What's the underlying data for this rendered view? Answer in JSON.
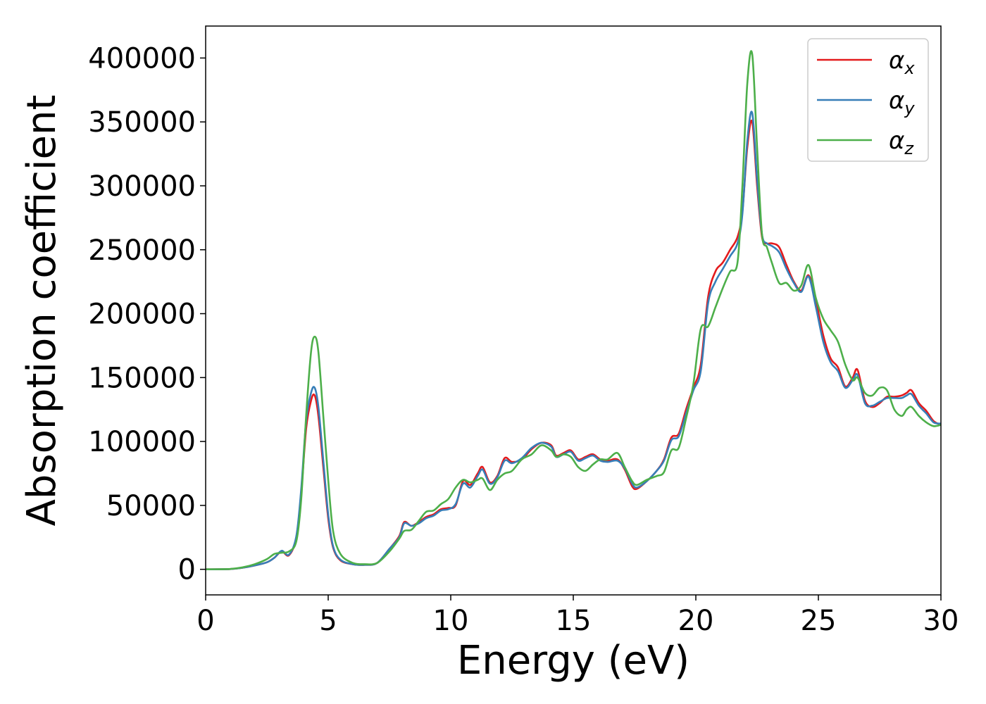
{
  "chart_data": {
    "type": "line",
    "xlabel": "Energy (eV)",
    "ylabel": "Absorption coefficient",
    "xlim": [
      0,
      30
    ],
    "ylim": [
      -20000,
      425000
    ],
    "xticks": [
      0,
      5,
      10,
      15,
      20,
      25,
      30
    ],
    "xtick_labels": [
      "0",
      "5",
      "10",
      "15",
      "20",
      "25",
      "30"
    ],
    "yticks": [
      0,
      50000,
      100000,
      150000,
      200000,
      250000,
      300000,
      350000,
      400000
    ],
    "ytick_labels": [
      "0",
      "50000",
      "100000",
      "150000",
      "200000",
      "250000",
      "300000",
      "350000",
      "400000"
    ],
    "grid": false,
    "legend_position": "top-right",
    "series": [
      {
        "name": "α_x",
        "symbol": "α",
        "subscript": "x",
        "color": "#e41a1c",
        "x": [
          0,
          1,
          1.5,
          2,
          2.5,
          2.8,
          3.1,
          3.4,
          3.7,
          3.9,
          4.1,
          4.3,
          4.45,
          4.6,
          4.8,
          5.0,
          5.2,
          5.5,
          6,
          6.5,
          7,
          7.5,
          7.9,
          8.1,
          8.4,
          8.7,
          9.0,
          9.3,
          9.6,
          9.9,
          10.2,
          10.5,
          10.8,
          11.1,
          11.3,
          11.6,
          11.9,
          12.2,
          12.5,
          12.9,
          13.3,
          13.7,
          14.1,
          14.3,
          14.6,
          14.9,
          15.2,
          15.5,
          15.8,
          16.1,
          16.4,
          16.8,
          17.1,
          17.4,
          17.6,
          18.0,
          18.4,
          18.7,
          19.0,
          19.3,
          19.6,
          19.9,
          20.2,
          20.5,
          20.8,
          21.1,
          21.4,
          21.7,
          21.9,
          22.1,
          22.3,
          22.5,
          22.7,
          22.9,
          23.1,
          23.4,
          23.7,
          24.0,
          24.3,
          24.6,
          24.9,
          25.2,
          25.5,
          25.8,
          26.1,
          26.4,
          26.6,
          26.9,
          27.2,
          27.5,
          27.8,
          28.1,
          28.4,
          28.6,
          28.8,
          29.1,
          29.4,
          29.7,
          30
        ],
        "y": [
          0,
          200,
          1200,
          3000,
          5500,
          9000,
          14000,
          11000,
          25000,
          60000,
          110000,
          132000,
          136000,
          120000,
          80000,
          40000,
          17000,
          7000,
          4000,
          3500,
          5000,
          16000,
          26000,
          37000,
          34000,
          37000,
          41000,
          43000,
          47000,
          48000,
          50000,
          69000,
          66000,
          75000,
          80000,
          68000,
          73000,
          87000,
          84000,
          86000,
          94000,
          99000,
          97000,
          89000,
          91000,
          93000,
          86000,
          88000,
          90000,
          86000,
          85000,
          86000,
          78000,
          65000,
          63000,
          69000,
          77000,
          86000,
          103000,
          106000,
          125000,
          142000,
          160000,
          213000,
          233000,
          240000,
          250000,
          260000,
          280000,
          330000,
          350000,
          300000,
          260000,
          255000,
          255000,
          252000,
          238000,
          225000,
          218000,
          230000,
          210000,
          183000,
          165000,
          158000,
          143000,
          150000,
          156000,
          132000,
          127000,
          130000,
          135000,
          135000,
          136000,
          138000,
          140000,
          130000,
          124000,
          116000,
          113000
        ]
      },
      {
        "name": "α_y",
        "symbol": "α",
        "subscript": "y",
        "color": "#377eb8",
        "x": [
          0,
          1,
          1.5,
          2,
          2.5,
          2.8,
          3.1,
          3.4,
          3.7,
          3.9,
          4.1,
          4.3,
          4.45,
          4.6,
          4.8,
          5.0,
          5.2,
          5.5,
          6,
          6.5,
          7,
          7.5,
          7.9,
          8.1,
          8.4,
          8.7,
          9.0,
          9.3,
          9.6,
          9.9,
          10.2,
          10.5,
          10.8,
          11.1,
          11.3,
          11.6,
          11.9,
          12.2,
          12.5,
          12.9,
          13.3,
          13.7,
          14.1,
          14.3,
          14.6,
          14.9,
          15.2,
          15.5,
          15.8,
          16.1,
          16.4,
          16.8,
          17.1,
          17.4,
          17.6,
          18.0,
          18.4,
          18.7,
          19.0,
          19.3,
          19.6,
          19.9,
          20.2,
          20.5,
          20.8,
          21.1,
          21.4,
          21.7,
          21.9,
          22.1,
          22.3,
          22.5,
          22.7,
          22.9,
          23.1,
          23.4,
          23.7,
          24.0,
          24.3,
          24.6,
          24.9,
          25.2,
          25.5,
          25.8,
          26.1,
          26.4,
          26.6,
          26.9,
          27.2,
          27.5,
          27.8,
          28.1,
          28.4,
          28.6,
          28.8,
          29.1,
          29.4,
          29.7,
          30
        ],
        "y": [
          0,
          200,
          1200,
          3000,
          5500,
          9000,
          14500,
          11500,
          26000,
          63000,
          116000,
          138000,
          142000,
          127000,
          85000,
          43000,
          18000,
          7500,
          4000,
          3500,
          5000,
          16000,
          25000,
          36000,
          34000,
          36000,
          40000,
          42000,
          46000,
          47000,
          51000,
          67000,
          64000,
          73000,
          78000,
          67000,
          72000,
          85000,
          83000,
          87000,
          95000,
          99000,
          96000,
          88000,
          90000,
          92000,
          85000,
          87000,
          89000,
          85000,
          84000,
          85000,
          79000,
          67000,
          64000,
          69000,
          77000,
          85000,
          101000,
          104000,
          122000,
          140000,
          155000,
          208000,
          225000,
          235000,
          245000,
          255000,
          278000,
          335000,
          357000,
          305000,
          262000,
          255000,
          253000,
          248000,
          235000,
          224000,
          217000,
          229000,
          205000,
          178000,
          162000,
          155000,
          142000,
          148000,
          152000,
          130000,
          128000,
          131000,
          134000,
          134000,
          134000,
          136000,
          137000,
          128000,
          122000,
          115000,
          114000
        ]
      },
      {
        "name": "α_z",
        "symbol": "α",
        "subscript": "z",
        "color": "#4daf4a",
        "x": [
          0,
          1,
          1.5,
          2,
          2.5,
          2.8,
          3.1,
          3.4,
          3.7,
          3.9,
          4.1,
          4.3,
          4.45,
          4.6,
          4.8,
          5.0,
          5.2,
          5.5,
          6,
          6.5,
          7,
          7.5,
          7.9,
          8.1,
          8.4,
          8.7,
          9.0,
          9.3,
          9.6,
          9.9,
          10.2,
          10.5,
          10.8,
          11.1,
          11.3,
          11.6,
          11.9,
          12.2,
          12.5,
          12.9,
          13.3,
          13.7,
          14.1,
          14.3,
          14.6,
          14.9,
          15.2,
          15.5,
          15.8,
          16.1,
          16.4,
          16.8,
          17.1,
          17.4,
          17.6,
          18.0,
          18.4,
          18.7,
          19.0,
          19.3,
          19.6,
          19.9,
          20.2,
          20.5,
          20.8,
          21.1,
          21.4,
          21.7,
          21.9,
          22.1,
          22.3,
          22.5,
          22.7,
          22.9,
          23.1,
          23.4,
          23.7,
          24.0,
          24.3,
          24.6,
          24.9,
          25.2,
          25.5,
          25.8,
          26.1,
          26.4,
          26.6,
          26.9,
          27.2,
          27.5,
          27.8,
          28.1,
          28.4,
          28.6,
          28.8,
          29.1,
          29.4,
          29.7,
          30
        ],
        "y": [
          0,
          300,
          1500,
          4000,
          8000,
          12000,
          13000,
          14000,
          22000,
          55000,
          120000,
          170000,
          182000,
          170000,
          120000,
          70000,
          30000,
          12000,
          5000,
          4000,
          5000,
          14000,
          24000,
          30000,
          31000,
          38000,
          45000,
          46000,
          51000,
          55000,
          64000,
          70000,
          68000,
          70000,
          71000,
          62000,
          70000,
          75000,
          77000,
          86000,
          90000,
          97000,
          93000,
          88000,
          90000,
          88000,
          80000,
          77000,
          82000,
          86000,
          86000,
          91000,
          80000,
          69000,
          66000,
          70000,
          73000,
          76000,
          93000,
          95000,
          118000,
          145000,
          188000,
          190000,
          205000,
          220000,
          233000,
          240000,
          300000,
          380000,
          403000,
          330000,
          262000,
          252000,
          240000,
          224000,
          224000,
          218000,
          222000,
          238000,
          212000,
          196000,
          187000,
          178000,
          160000,
          148000,
          150000,
          138000,
          136000,
          142000,
          140000,
          125000,
          120000,
          125000,
          127000,
          120000,
          115000,
          112000,
          113000
        ]
      }
    ]
  }
}
